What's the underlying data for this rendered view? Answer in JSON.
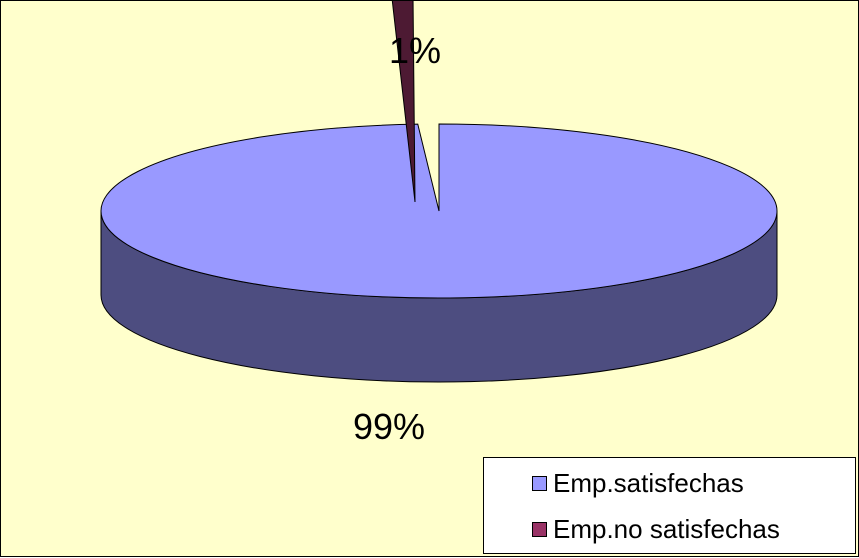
{
  "chart_data": {
    "type": "pie",
    "style": "3d-exploded",
    "labels": [
      "Emp.satisfechas",
      "Emp.no satisfechas"
    ],
    "values": [
      99,
      1
    ],
    "value_labels": [
      "99%",
      "1%"
    ],
    "colors": [
      "#9999ff",
      "#993366"
    ],
    "side_colors": [
      "#4d4d80",
      "#4d1a33"
    ],
    "background": "#ffffcc",
    "legend_position": "bottom-right"
  }
}
